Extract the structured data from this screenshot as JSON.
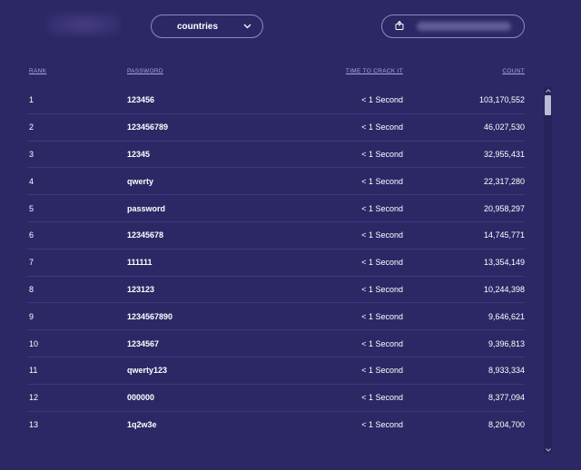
{
  "filter": {
    "selected": "countries",
    "icon": "chevron-down-icon"
  },
  "share": {
    "icon": "share-icon"
  },
  "table": {
    "headers": {
      "rank": "RANK",
      "password": "PASSWORD",
      "time": "TIME TO CRACK IT",
      "count": "COUNT"
    },
    "rows": [
      {
        "rank": "1",
        "password": "123456",
        "time": "< 1 Second",
        "count": "103,170,552"
      },
      {
        "rank": "2",
        "password": "123456789",
        "time": "< 1 Second",
        "count": "46,027,530"
      },
      {
        "rank": "3",
        "password": "12345",
        "time": "< 1 Second",
        "count": "32,955,431"
      },
      {
        "rank": "4",
        "password": "qwerty",
        "time": "< 1 Second",
        "count": "22,317,280"
      },
      {
        "rank": "5",
        "password": "password",
        "time": "< 1 Second",
        "count": "20,958,297"
      },
      {
        "rank": "6",
        "password": "12345678",
        "time": "< 1 Second",
        "count": "14,745,771"
      },
      {
        "rank": "7",
        "password": "111111",
        "time": "< 1 Second",
        "count": "13,354,149"
      },
      {
        "rank": "8",
        "password": "123123",
        "time": "< 1 Second",
        "count": "10,244,398"
      },
      {
        "rank": "9",
        "password": "1234567890",
        "time": "< 1 Second",
        "count": "9,646,621"
      },
      {
        "rank": "10",
        "password": "1234567",
        "time": "< 1 Second",
        "count": "9,396,813"
      },
      {
        "rank": "11",
        "password": "qwerty123",
        "time": "< 1 Second",
        "count": "8,933,334"
      },
      {
        "rank": "12",
        "password": "000000",
        "time": "< 1 Second",
        "count": "8,377,094"
      },
      {
        "rank": "13",
        "password": "1q2w3e",
        "time": "< 1 Second",
        "count": "8,204,700"
      }
    ]
  },
  "colors": {
    "background": "#2c2866",
    "header_link": "#a9a5e0",
    "divider": "#3d3a7c",
    "text": "#ffffff"
  }
}
